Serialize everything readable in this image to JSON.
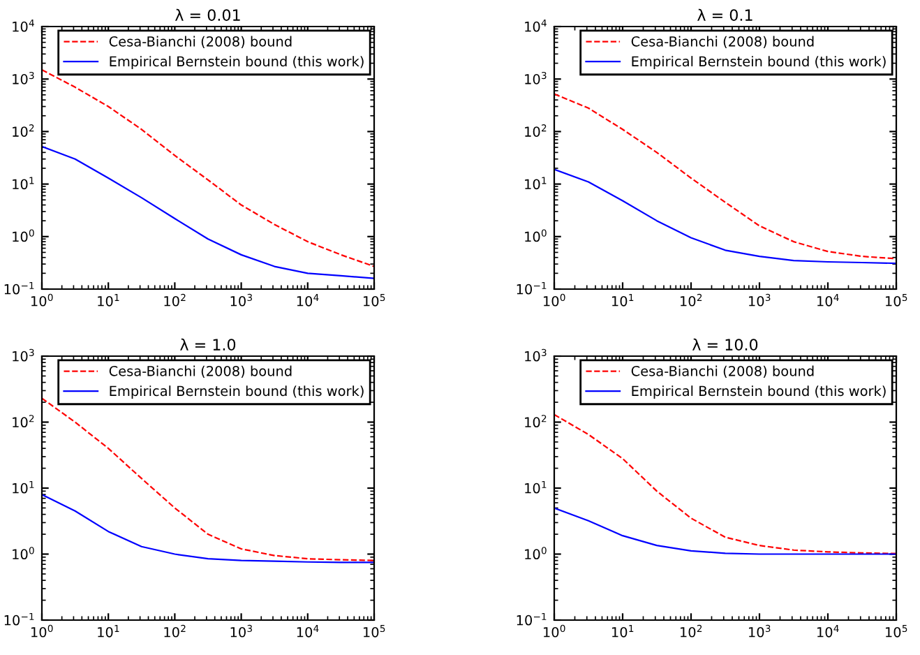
{
  "chart_data": [
    {
      "type": "line",
      "title": "λ = 0.01",
      "x": [
        1,
        3.16,
        10,
        31.6,
        100,
        316,
        1000,
        3162,
        10000,
        31623,
        100000
      ],
      "log": "xy",
      "legend": "top right",
      "grid": false,
      "xlim": [
        1,
        100000
      ],
      "ylim": [
        0.1,
        10000
      ],
      "xticks": [
        {
          "value": 1,
          "label": "10$^{0}$"
        },
        {
          "value": 10,
          "label": "10$^{1}$"
        },
        {
          "value": 100,
          "label": "10$^{2}$"
        },
        {
          "value": 1000,
          "label": "10$^{3}$"
        },
        {
          "value": 10000,
          "label": "10$^{4}$"
        },
        {
          "value": 100000,
          "label": "10$^{5}$"
        }
      ],
      "yticks": [
        {
          "value": 0.1,
          "label": "10$^{−1}$"
        },
        {
          "value": 1,
          "label": "10$^{0}$"
        },
        {
          "value": 10,
          "label": "10$^{1}$"
        },
        {
          "value": 100,
          "label": "10$^{2}$"
        },
        {
          "value": 1000,
          "label": "10$^{3}$"
        },
        {
          "value": 10000,
          "label": "10$^{4}$"
        }
      ],
      "series": [
        {
          "name": "Cesa-Bianchi (2008) bound",
          "color": "#ff0000",
          "line_style": "dashed",
          "values": [
            1500,
            700,
            300,
            110,
            35,
            12,
            4,
            1.7,
            0.8,
            0.45,
            0.27
          ]
        },
        {
          "name": "Empirical Bernstein bound (this work)",
          "color": "#0000ff",
          "line_style": "solid",
          "values": [
            52,
            30,
            13,
            5.5,
            2.2,
            0.9,
            0.45,
            0.27,
            0.2,
            0.18,
            0.16
          ]
        }
      ]
    },
    {
      "type": "line",
      "title": "λ = 0.1",
      "x": [
        1,
        3.16,
        10,
        31.6,
        100,
        316,
        1000,
        3162,
        10000,
        31623,
        100000
      ],
      "log": "xy",
      "legend": "top right",
      "grid": false,
      "xlim": [
        1,
        100000
      ],
      "ylim": [
        0.1,
        10000
      ],
      "xticks": [
        {
          "value": 1,
          "label": "10$^{0}$"
        },
        {
          "value": 10,
          "label": "10$^{1}$"
        },
        {
          "value": 100,
          "label": "10$^{2}$"
        },
        {
          "value": 1000,
          "label": "10$^{3}$"
        },
        {
          "value": 10000,
          "label": "10$^{4}$"
        },
        {
          "value": 100000,
          "label": "10$^{5}$"
        }
      ],
      "yticks": [
        {
          "value": 0.1,
          "label": "10$^{−1}$"
        },
        {
          "value": 1,
          "label": "10$^{0}$"
        },
        {
          "value": 10,
          "label": "10$^{1}$"
        },
        {
          "value": 100,
          "label": "10$^{2}$"
        },
        {
          "value": 1000,
          "label": "10$^{3}$"
        },
        {
          "value": 10000,
          "label": "10$^{4}$"
        }
      ],
      "series": [
        {
          "name": "Cesa-Bianchi (2008) bound",
          "color": "#ff0000",
          "line_style": "dashed",
          "values": [
            520,
            280,
            110,
            40,
            13,
            4.5,
            1.6,
            0.8,
            0.52,
            0.42,
            0.38
          ]
        },
        {
          "name": "Empirical Bernstein bound (this work)",
          "color": "#0000ff",
          "line_style": "solid",
          "values": [
            19,
            11,
            4.8,
            2.0,
            0.95,
            0.55,
            0.42,
            0.35,
            0.33,
            0.32,
            0.31
          ]
        }
      ]
    },
    {
      "type": "line",
      "title": "λ = 1.0",
      "x": [
        1,
        3.16,
        10,
        31.6,
        100,
        316,
        1000,
        3162,
        10000,
        31623,
        100000
      ],
      "log": "xy",
      "legend": "top right",
      "grid": false,
      "xlim": [
        1,
        100000
      ],
      "ylim": [
        0.1,
        1000
      ],
      "xticks": [
        {
          "value": 1,
          "label": "10$^{0}$"
        },
        {
          "value": 10,
          "label": "10$^{1}$"
        },
        {
          "value": 100,
          "label": "10$^{2}$"
        },
        {
          "value": 1000,
          "label": "10$^{3}$"
        },
        {
          "value": 10000,
          "label": "10$^{4}$"
        },
        {
          "value": 100000,
          "label": "10$^{5}$"
        }
      ],
      "yticks": [
        {
          "value": 0.1,
          "label": "10$^{−1}$"
        },
        {
          "value": 1,
          "label": "10$^{0}$"
        },
        {
          "value": 10,
          "label": "10$^{1}$"
        },
        {
          "value": 100,
          "label": "10$^{2}$"
        },
        {
          "value": 1000,
          "label": "10$^{3}$"
        }
      ],
      "series": [
        {
          "name": "Cesa-Bianchi (2008) bound",
          "color": "#ff0000",
          "line_style": "dashed",
          "values": [
            230,
            100,
            40,
            14,
            5,
            2.0,
            1.2,
            0.95,
            0.85,
            0.82,
            0.8
          ]
        },
        {
          "name": "Empirical Bernstein bound (this work)",
          "color": "#0000ff",
          "line_style": "solid",
          "values": [
            8,
            4.5,
            2.2,
            1.3,
            1.0,
            0.85,
            0.8,
            0.78,
            0.76,
            0.75,
            0.75
          ]
        }
      ]
    },
    {
      "type": "line",
      "title": "λ = 10.0",
      "x": [
        1,
        3.16,
        10,
        31.6,
        100,
        316,
        1000,
        3162,
        10000,
        31623,
        100000
      ],
      "log": "xy",
      "legend": "top right",
      "grid": false,
      "xlim": [
        1,
        100000
      ],
      "ylim": [
        0.1,
        1000
      ],
      "xticks": [
        {
          "value": 1,
          "label": "10$^{0}$"
        },
        {
          "value": 10,
          "label": "10$^{1}$"
        },
        {
          "value": 100,
          "label": "10$^{2}$"
        },
        {
          "value": 1000,
          "label": "10$^{3}$"
        },
        {
          "value": 10000,
          "label": "10$^{4}$"
        },
        {
          "value": 100000,
          "label": "10$^{5}$"
        }
      ],
      "yticks": [
        {
          "value": 0.1,
          "label": "10$^{−1}$"
        },
        {
          "value": 1,
          "label": "10$^{0}$"
        },
        {
          "value": 10,
          "label": "10$^{1}$"
        },
        {
          "value": 100,
          "label": "10$^{2}$"
        },
        {
          "value": 1000,
          "label": "10$^{3}$"
        }
      ],
      "series": [
        {
          "name": "Cesa-Bianchi (2008) bound",
          "color": "#ff0000",
          "line_style": "dashed",
          "values": [
            130,
            65,
            28,
            9,
            3.5,
            1.8,
            1.35,
            1.15,
            1.08,
            1.04,
            1.02
          ]
        },
        {
          "name": "Empirical Bernstein bound (this work)",
          "color": "#0000ff",
          "line_style": "solid",
          "values": [
            5,
            3.2,
            1.9,
            1.35,
            1.12,
            1.03,
            1.0,
            1.0,
            1.0,
            1.0,
            1.0
          ]
        }
      ]
    }
  ]
}
